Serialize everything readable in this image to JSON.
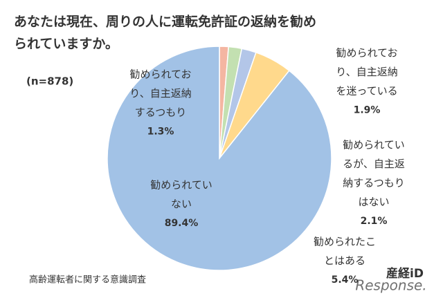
{
  "chart_data": {
    "type": "pie",
    "title": [
      "あなたは現在、周りの人に運転免許証の返納を勧め",
      "られていますか。"
    ],
    "subtitle": "(n=878)",
    "categories": [
      [
        "勧められてお",
        "り、自主返納",
        "するつもり"
      ],
      [
        "勧められてお",
        "り、自主返納",
        "を迷っている"
      ],
      [
        "勧められてい",
        "るが、自主返",
        "納するつもり",
        "はない"
      ],
      [
        "勧められたこ",
        "とはある"
      ],
      [
        "勧められてい",
        "ない"
      ]
    ],
    "values": [
      1.3,
      1.9,
      2.1,
      5.4,
      89.4
    ],
    "value_labels": [
      "1.3%",
      "1.9%",
      "2.1%",
      "5.4%",
      "89.4%"
    ],
    "colors": [
      "#f4b6a2",
      "#c3e0b1",
      "#b3c6e8",
      "#ffd98c",
      "#a2c2e6"
    ],
    "source": "高齢運転者に関する意識調査",
    "logo": "産経iD",
    "watermark": "Response."
  }
}
